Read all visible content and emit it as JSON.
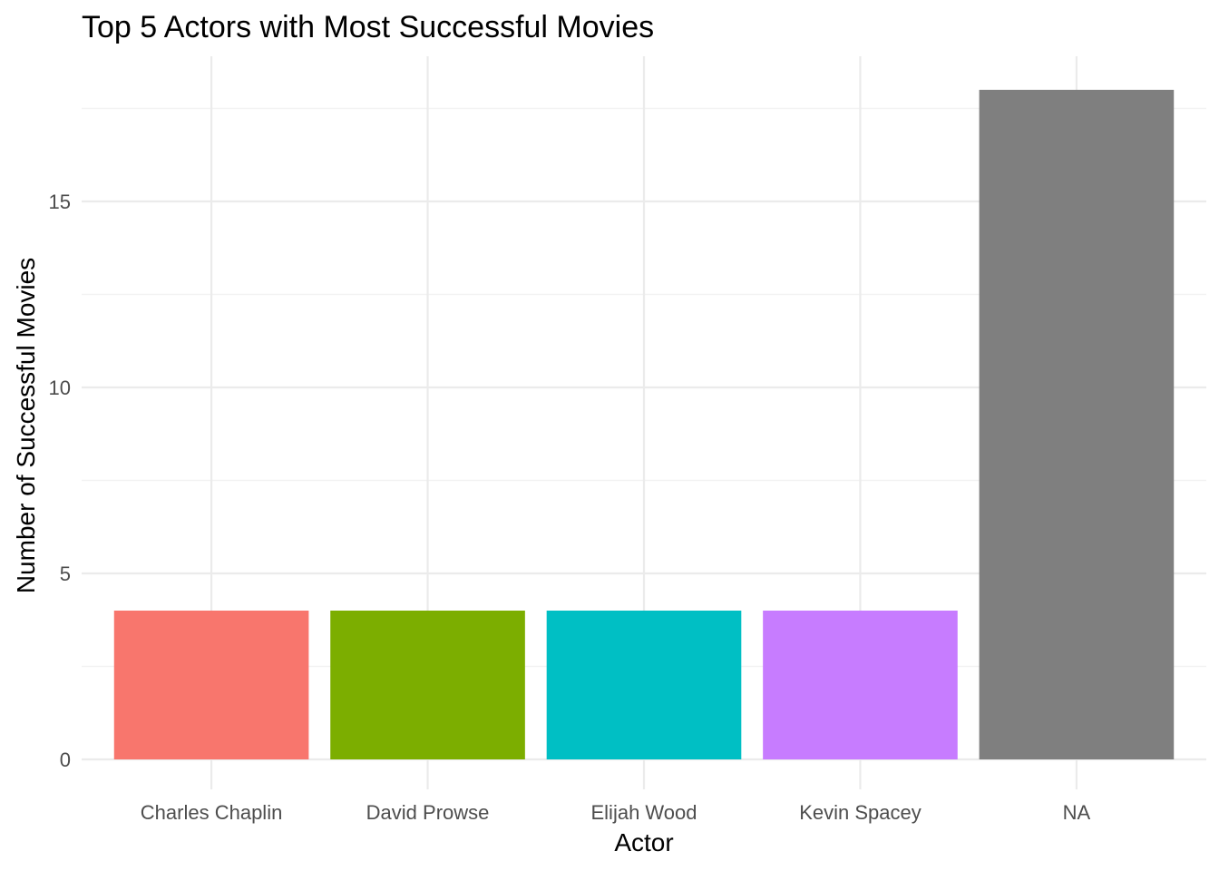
{
  "chart_data": {
    "type": "bar",
    "title": "Top 5 Actors with Most Successful Movies",
    "xlabel": "Actor",
    "ylabel": "Number of Successful Movies",
    "categories": [
      "Charles Chaplin",
      "David Prowse",
      "Elijah Wood",
      "Kevin Spacey",
      "NA"
    ],
    "values": [
      4,
      4,
      4,
      4,
      18
    ],
    "colors": [
      "#F8766D",
      "#7CAE00",
      "#00BFC4",
      "#C77CFF",
      "#7F7F7F"
    ],
    "ylim": [
      0,
      18
    ],
    "yticks": [
      0,
      5,
      10,
      15
    ],
    "grid": true,
    "legend": "none"
  }
}
